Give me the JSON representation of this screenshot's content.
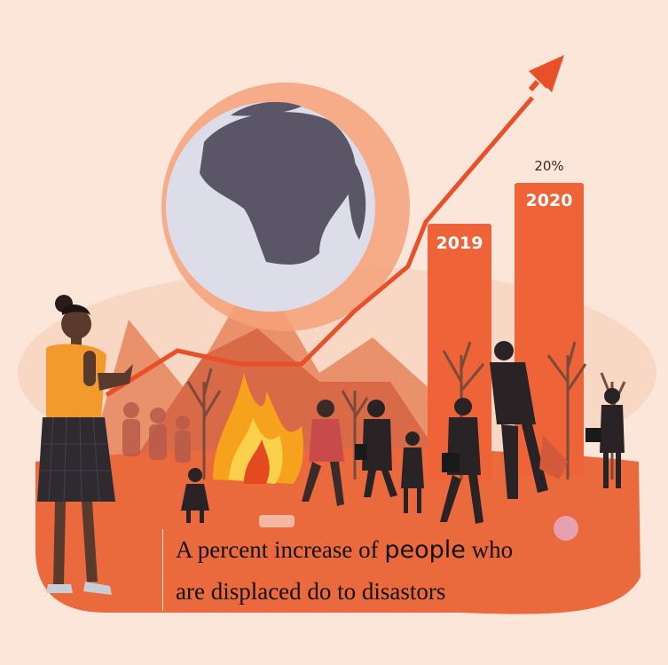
{
  "bars": [
    {
      "label": "2019"
    },
    {
      "label": "2020",
      "top_label": "20%"
    }
  ],
  "caption": {
    "line1_a": "A percent increase of",
    "line1_b": "people",
    "line1_c": "who",
    "line2": "are displaced do to disastors"
  },
  "colors": {
    "background": "#fbe6d9",
    "ground": "#ea6a3e",
    "bar": "#ee6337",
    "arrow": "#e8502a",
    "globe_land": "#5a5668",
    "globe_sea": "#dcdde8",
    "fire": "#f7a21c"
  }
}
